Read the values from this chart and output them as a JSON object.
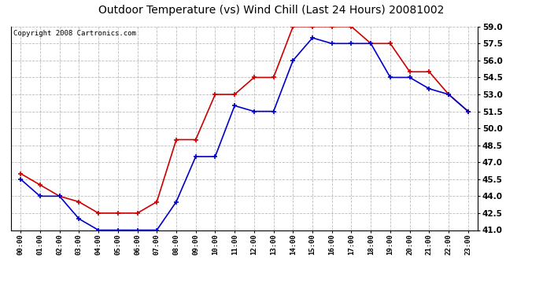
{
  "title": "Outdoor Temperature (vs) Wind Chill (Last 24 Hours) 20081002",
  "copyright": "Copyright 2008 Cartronics.com",
  "hours": [
    "00:00",
    "01:00",
    "02:00",
    "03:00",
    "04:00",
    "05:00",
    "06:00",
    "07:00",
    "08:00",
    "09:00",
    "10:00",
    "11:00",
    "12:00",
    "13:00",
    "14:00",
    "15:00",
    "16:00",
    "17:00",
    "18:00",
    "19:00",
    "20:00",
    "21:00",
    "22:00",
    "23:00"
  ],
  "temp": [
    46.0,
    45.0,
    44.0,
    43.5,
    42.5,
    42.5,
    42.5,
    43.5,
    49.0,
    49.0,
    53.0,
    53.0,
    54.5,
    54.5,
    59.0,
    59.0,
    59.0,
    59.0,
    57.5,
    57.5,
    55.0,
    55.0,
    53.0,
    51.5
  ],
  "windchill": [
    45.5,
    44.0,
    44.0,
    42.0,
    41.0,
    41.0,
    41.0,
    41.0,
    43.5,
    47.5,
    47.5,
    52.0,
    51.5,
    51.5,
    56.0,
    58.0,
    57.5,
    57.5,
    57.5,
    54.5,
    54.5,
    53.5,
    53.0,
    51.5
  ],
  "temp_color": "#cc0000",
  "windchill_color": "#0000cc",
  "ylim": [
    41.0,
    59.0
  ],
  "yticks": [
    41.0,
    42.5,
    44.0,
    45.5,
    47.0,
    48.5,
    50.0,
    51.5,
    53.0,
    54.5,
    56.0,
    57.5,
    59.0
  ],
  "bg_color": "#ffffff",
  "plot_bg_color": "#ffffff",
  "grid_color": "#aaaaaa",
  "title_fontsize": 10,
  "copyright_fontsize": 6.5
}
